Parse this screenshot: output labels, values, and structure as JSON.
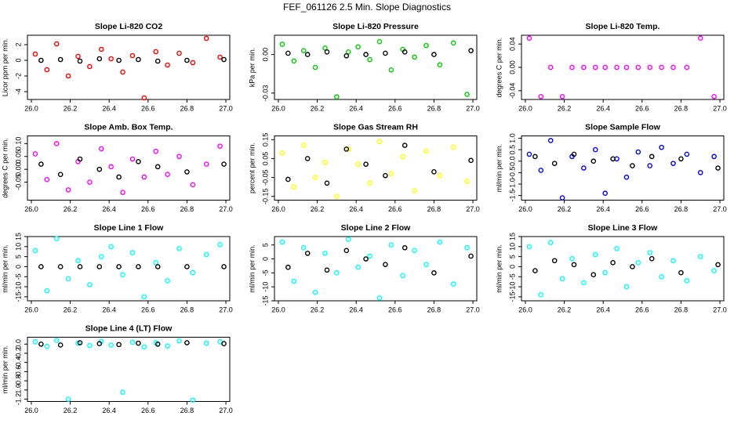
{
  "title": "FEF_061126  2.5 Min. Slope Diagnostics",
  "chart_data": [
    {
      "type": "scatter",
      "title": "Slope Li-820 CO2",
      "ylabel": "Licor ppm per min.",
      "xlim": [
        25.98,
        27.02
      ],
      "ylim": [
        -5,
        3.2
      ],
      "xticks": [
        {
          "value": 26,
          "label": "26.0"
        },
        {
          "value": 26.2,
          "label": "26.2"
        },
        {
          "value": 26.4,
          "label": "26.4"
        },
        {
          "value": 26.6,
          "label": "26.6"
        },
        {
          "value": 26.8,
          "label": "26.8"
        },
        {
          "value": 27,
          "label": "27.0"
        }
      ],
      "yticks": [
        -4,
        -2,
        0,
        2
      ],
      "series": [
        {
          "color": "#ff0000",
          "x": [
            26.02,
            26.08,
            26.13,
            26.19,
            26.24,
            26.3,
            26.36,
            26.41,
            26.47,
            26.52,
            26.58,
            26.64,
            26.7,
            26.76,
            26.83,
            26.9,
            26.97
          ],
          "values": [
            0.8,
            -1.2,
            2.1,
            -2.0,
            0.5,
            -0.8,
            1.4,
            0.2,
            -1.5,
            0.6,
            -4.8,
            1.1,
            -0.6,
            0.9,
            -0.3,
            2.8,
            0.4
          ]
        },
        {
          "color": "#000000",
          "x": [
            26.05,
            26.15,
            26.25,
            26.35,
            26.45,
            26.55,
            26.65,
            26.8,
            26.99
          ],
          "values": [
            0,
            0.1,
            -0.1,
            0.2,
            0,
            0.1,
            -0.1,
            0,
            0.1
          ]
        }
      ]
    },
    {
      "type": "scatter",
      "title": "Slope Li-820 Pressure",
      "ylabel": "kPa per min.",
      "xlim": [
        25.98,
        27.02
      ],
      "ylim": [
        -0.035,
        0.015
      ],
      "xticks": [
        {
          "value": 26,
          "label": "26.0"
        },
        {
          "value": 26.2,
          "label": "26.2"
        },
        {
          "value": 26.4,
          "label": "26.4"
        },
        {
          "value": 26.6,
          "label": "26.6"
        },
        {
          "value": 26.8,
          "label": "26.8"
        },
        {
          "value": 27,
          "label": "27.0"
        }
      ],
      "yticks": [
        {
          "value": -0.03,
          "label": "-0.03"
        },
        {
          "value": 0,
          "label": "0.00"
        }
      ],
      "series": [
        {
          "color": "#00cc00",
          "x": [
            26.02,
            26.08,
            26.13,
            26.19,
            26.24,
            26.3,
            26.36,
            26.41,
            26.47,
            26.52,
            26.58,
            26.64,
            26.7,
            26.76,
            26.83,
            26.9,
            26.97
          ],
          "values": [
            0.008,
            -0.005,
            0.003,
            -0.01,
            0.005,
            -0.033,
            0.002,
            0.006,
            -0.004,
            0.01,
            -0.012,
            0.004,
            -0.002,
            0.007,
            -0.008,
            0.009,
            -0.031
          ]
        },
        {
          "color": "#000000",
          "x": [
            26.05,
            26.15,
            26.25,
            26.35,
            26.45,
            26.55,
            26.65,
            26.8,
            26.99
          ],
          "values": [
            0.001,
            0,
            0.002,
            -0.001,
            0,
            0.001,
            0.002,
            0,
            0.003
          ]
        }
      ]
    },
    {
      "type": "scatter",
      "title": "Slope Li-820 Temp.",
      "ylabel": "degrees C per min.",
      "xlim": [
        25.98,
        27.02
      ],
      "ylim": [
        -0.055,
        0.055
      ],
      "xticks": [
        {
          "value": 26,
          "label": "26.0"
        },
        {
          "value": 26.2,
          "label": "26.2"
        },
        {
          "value": 26.4,
          "label": "26.4"
        },
        {
          "value": 26.6,
          "label": "26.6"
        },
        {
          "value": 26.8,
          "label": "26.8"
        },
        {
          "value": 27,
          "label": "27.0"
        }
      ],
      "yticks": [
        {
          "value": -0.04,
          "label": "-0.04"
        },
        {
          "value": 0,
          "label": "0.00"
        },
        {
          "value": 0.04,
          "label": "0.04"
        }
      ],
      "series": [
        {
          "color": "#ff00ff",
          "x": [
            26.02,
            26.08,
            26.13,
            26.19,
            26.24,
            26.3,
            26.36,
            26.41,
            26.47,
            26.52,
            26.58,
            26.64,
            26.7,
            26.76,
            26.83,
            26.9,
            26.97
          ],
          "values": [
            0.05,
            -0.05,
            0,
            -0.05,
            0,
            0,
            0,
            0,
            0,
            0,
            0,
            0,
            0,
            0,
            0,
            0.05,
            -0.05
          ]
        }
      ]
    },
    {
      "type": "scatter",
      "title": "Slope Amb. Box Temp.",
      "ylabel": "degrees C per min.",
      "xlim": [
        25.98,
        27.02
      ],
      "ylim": [
        -0.12,
        0.13
      ],
      "xticks": [
        {
          "value": 26,
          "label": "26.0"
        },
        {
          "value": 26.2,
          "label": "26.2"
        },
        {
          "value": 26.4,
          "label": "26.4"
        },
        {
          "value": 26.6,
          "label": "26.6"
        },
        {
          "value": 26.8,
          "label": "26.8"
        },
        {
          "value": 27,
          "label": "27.0"
        }
      ],
      "yticks": [
        -0.05,
        {
          "value": 0,
          "label": "0.00"
        },
        0.05,
        {
          "value": 0.1,
          "label": "0.10"
        }
      ],
      "series": [
        {
          "color": "#ff00ff",
          "x": [
            26.02,
            26.08,
            26.13,
            26.19,
            26.24,
            26.3,
            26.36,
            26.41,
            26.47,
            26.52,
            26.58,
            26.64,
            26.7,
            26.76,
            26.83,
            26.9,
            26.97
          ],
          "values": [
            0.06,
            -0.04,
            0.1,
            -0.08,
            0.03,
            -0.05,
            0.08,
            0.01,
            -0.09,
            0.04,
            -0.03,
            0.07,
            -0.02,
            0.05,
            -0.06,
            0.02,
            0.09
          ]
        },
        {
          "color": "#000000",
          "x": [
            26.05,
            26.15,
            26.25,
            26.35,
            26.45,
            26.55,
            26.65,
            26.8,
            26.99
          ],
          "values": [
            0.02,
            -0.02,
            0.04,
            0,
            -0.03,
            0.03,
            0.01,
            -0.01,
            0.02
          ]
        }
      ]
    },
    {
      "type": "scatter",
      "title": "Slope Gas Stream RH",
      "ylabel": "percent per min.",
      "xlim": [
        25.98,
        27.02
      ],
      "ylim": [
        -0.17,
        0.17
      ],
      "xticks": [
        {
          "value": 26,
          "label": "26.0"
        },
        {
          "value": 26.2,
          "label": "26.2"
        },
        {
          "value": 26.4,
          "label": "26.4"
        },
        {
          "value": 26.6,
          "label": "26.6"
        },
        {
          "value": 26.8,
          "label": "26.8"
        },
        {
          "value": 27,
          "label": "27.0"
        }
      ],
      "yticks": [
        -0.15,
        -0.05,
        0.05,
        0.15
      ],
      "series": [
        {
          "color": "#ffff00",
          "x": [
            26.02,
            26.08,
            26.13,
            26.19,
            26.24,
            26.3,
            26.36,
            26.41,
            26.47,
            26.52,
            26.58,
            26.64,
            26.7,
            26.76,
            26.83,
            26.9,
            26.97
          ],
          "values": [
            0.08,
            -0.1,
            0.12,
            -0.05,
            0.03,
            -0.15,
            0.1,
            0.02,
            -0.08,
            0.14,
            -0.03,
            0.06,
            -0.12,
            0.09,
            -0.04,
            0.11,
            -0.07
          ]
        },
        {
          "color": "#000000",
          "x": [
            26.05,
            26.15,
            26.25,
            26.35,
            26.45,
            26.55,
            26.65,
            26.8,
            26.99
          ],
          "values": [
            -0.06,
            0.05,
            -0.08,
            0.1,
            0.02,
            -0.04,
            0.12,
            -0.02,
            0.04
          ]
        }
      ]
    },
    {
      "type": "scatter",
      "title": "Slope Sample Flow",
      "ylabel": "ml/min per min.",
      "xlim": [
        25.98,
        27.02
      ],
      "ylim": [
        -1.7,
        1.1
      ],
      "xticks": [
        {
          "value": 26,
          "label": "26.0"
        },
        {
          "value": 26.2,
          "label": "26.2"
        },
        {
          "value": 26.4,
          "label": "26.4"
        },
        {
          "value": 26.6,
          "label": "26.6"
        },
        {
          "value": 26.8,
          "label": "26.8"
        },
        {
          "value": 27,
          "label": "27.0"
        }
      ],
      "yticks": [
        -1.5,
        {
          "value": -1,
          "label": "-1.0"
        },
        -0.5,
        {
          "value": 0,
          "label": "0.0"
        },
        0.5,
        {
          "value": 1,
          "label": "1.0"
        }
      ],
      "series": [
        {
          "color": "#0000ff",
          "x": [
            26.02,
            26.08,
            26.13,
            26.19,
            26.24,
            26.3,
            26.36,
            26.41,
            26.47,
            26.52,
            26.58,
            26.64,
            26.7,
            26.76,
            26.83,
            26.9,
            26.97
          ],
          "values": [
            0.3,
            -0.4,
            0.9,
            -1.6,
            0.2,
            -0.3,
            0.5,
            -1.4,
            0.1,
            -0.7,
            0.4,
            -0.2,
            0.6,
            -0.1,
            0.3,
            -0.5,
            0.2
          ]
        },
        {
          "color": "#000000",
          "x": [
            26.05,
            26.15,
            26.25,
            26.35,
            26.45,
            26.55,
            26.65,
            26.8,
            26.99
          ],
          "values": [
            0.2,
            -0.1,
            0.3,
            0,
            0.1,
            -0.2,
            0.2,
            0.1,
            -0.3
          ]
        }
      ]
    },
    {
      "type": "scatter",
      "title": "Slope Line 1 Flow",
      "ylabel": "ml/min per min.",
      "xlim": [
        25.98,
        27.02
      ],
      "ylim": [
        -17,
        15
      ],
      "xticks": [
        {
          "value": 26,
          "label": "26.0"
        },
        {
          "value": 26.2,
          "label": "26.2"
        },
        {
          "value": 26.4,
          "label": "26.4"
        },
        {
          "value": 26.6,
          "label": "26.6"
        },
        {
          "value": 26.8,
          "label": "26.8"
        },
        {
          "value": 27,
          "label": "27.0"
        }
      ],
      "yticks": [
        -15,
        -10,
        -5,
        0,
        5,
        10,
        15
      ],
      "series": [
        {
          "color": "#00ffff",
          "x": [
            26.02,
            26.08,
            26.13,
            26.19,
            26.24,
            26.3,
            26.36,
            26.41,
            26.47,
            26.52,
            26.58,
            26.64,
            26.7,
            26.76,
            26.83,
            26.9,
            26.97
          ],
          "values": [
            8,
            -12,
            14,
            -6,
            3,
            -9,
            5,
            10,
            -4,
            7,
            -15,
            2,
            -7,
            9,
            -3,
            6,
            11
          ]
        },
        {
          "color": "#000000",
          "x": [
            26.05,
            26.15,
            26.25,
            26.35,
            26.45,
            26.55,
            26.65,
            26.8,
            26.99
          ],
          "values": [
            0,
            0,
            0,
            0,
            0,
            0,
            0,
            0,
            0
          ]
        }
      ]
    },
    {
      "type": "scatter",
      "title": "Slope Line 2 Flow",
      "ylabel": "ml/min per min.",
      "xlim": [
        25.98,
        27.02
      ],
      "ylim": [
        -15,
        8
      ],
      "xticks": [
        {
          "value": 26,
          "label": "26.0"
        },
        {
          "value": 26.2,
          "label": "26.2"
        },
        {
          "value": 26.4,
          "label": "26.4"
        },
        {
          "value": 26.6,
          "label": "26.6"
        },
        {
          "value": 26.8,
          "label": "26.8"
        },
        {
          "value": 27,
          "label": "27.0"
        }
      ],
      "yticks": [
        -15,
        -10,
        -5,
        0,
        5
      ],
      "series": [
        {
          "color": "#00ffff",
          "x": [
            26.02,
            26.08,
            26.13,
            26.19,
            26.24,
            26.3,
            26.36,
            26.41,
            26.47,
            26.52,
            26.58,
            26.64,
            26.7,
            26.76,
            26.83,
            26.9,
            26.97
          ],
          "values": [
            6,
            -8,
            4,
            -12,
            2,
            -5,
            7,
            -3,
            1,
            -14,
            5,
            -6,
            3,
            -2,
            6,
            -9,
            4
          ]
        },
        {
          "color": "#000000",
          "x": [
            26.05,
            26.15,
            26.25,
            26.35,
            26.45,
            26.55,
            26.65,
            26.8,
            26.99
          ],
          "values": [
            -3,
            2,
            -4,
            3,
            0,
            -2,
            4,
            -5,
            1
          ]
        }
      ]
    },
    {
      "type": "scatter",
      "title": "Slope Line 3 Flow",
      "ylabel": "ml/min per min.",
      "xlim": [
        25.98,
        27.02
      ],
      "ylim": [
        -17,
        15
      ],
      "xticks": [
        {
          "value": 26,
          "label": "26.0"
        },
        {
          "value": 26.2,
          "label": "26.2"
        },
        {
          "value": 26.4,
          "label": "26.4"
        },
        {
          "value": 26.6,
          "label": "26.6"
        },
        {
          "value": 26.8,
          "label": "26.8"
        },
        {
          "value": 27,
          "label": "27.0"
        }
      ],
      "yticks": [
        -15,
        -10,
        -5,
        0,
        5,
        10,
        15
      ],
      "series": [
        {
          "color": "#00ffff",
          "x": [
            26.02,
            26.08,
            26.13,
            26.19,
            26.24,
            26.3,
            26.36,
            26.41,
            26.47,
            26.52,
            26.58,
            26.64,
            26.7,
            26.76,
            26.83,
            26.9,
            26.97
          ],
          "values": [
            10,
            -14,
            12,
            -6,
            4,
            -8,
            6,
            -3,
            9,
            -10,
            2,
            7,
            -5,
            3,
            -7,
            5,
            -2
          ]
        },
        {
          "color": "#000000",
          "x": [
            26.05,
            26.15,
            26.25,
            26.35,
            26.45,
            26.55,
            26.65,
            26.8,
            26.99
          ],
          "values": [
            -2,
            3,
            1,
            -4,
            2,
            0,
            4,
            -3,
            1
          ]
        }
      ]
    },
    {
      "type": "scatter",
      "title": "Slope Line 4 (LT) Flow",
      "ylabel": "ml/min per min.",
      "xlim": [
        25.98,
        27.02
      ],
      "ylim": [
        -1.25,
        0.15
      ],
      "xticks": [
        {
          "value": 26,
          "label": "26.0"
        },
        {
          "value": 26.2,
          "label": "26.2"
        },
        {
          "value": 26.4,
          "label": "26.4"
        },
        {
          "value": 26.6,
          "label": "26.6"
        },
        {
          "value": 26.8,
          "label": "26.8"
        },
        {
          "value": 27,
          "label": "27.0"
        }
      ],
      "yticks": [
        -1.2,
        {
          "value": -1,
          "label": "-1.0"
        },
        -0.8,
        -0.6,
        -0.4,
        -0.2,
        {
          "value": 0,
          "label": "0.0"
        }
      ],
      "series": [
        {
          "color": "#00ffff",
          "x": [
            26.02,
            26.08,
            26.13,
            26.19,
            26.24,
            26.3,
            26.36,
            26.41,
            26.47,
            26.52,
            26.58,
            26.64,
            26.7,
            26.76,
            26.83,
            26.9,
            26.97
          ],
          "values": [
            0.05,
            -0.05,
            0.08,
            -1.2,
            0.02,
            -0.03,
            0.06,
            -0.02,
            -1.05,
            0.04,
            -0.06,
            0.03,
            -0.04,
            0.07,
            -1.22,
            0.02,
            0.05
          ]
        },
        {
          "color": "#000000",
          "x": [
            26.05,
            26.15,
            26.25,
            26.35,
            26.45,
            26.55,
            26.65,
            26.8,
            26.99
          ],
          "values": [
            0,
            -0.02,
            0.03,
            0.01,
            -0.01,
            0.02,
            0,
            0.03,
            0.01
          ]
        }
      ]
    }
  ]
}
